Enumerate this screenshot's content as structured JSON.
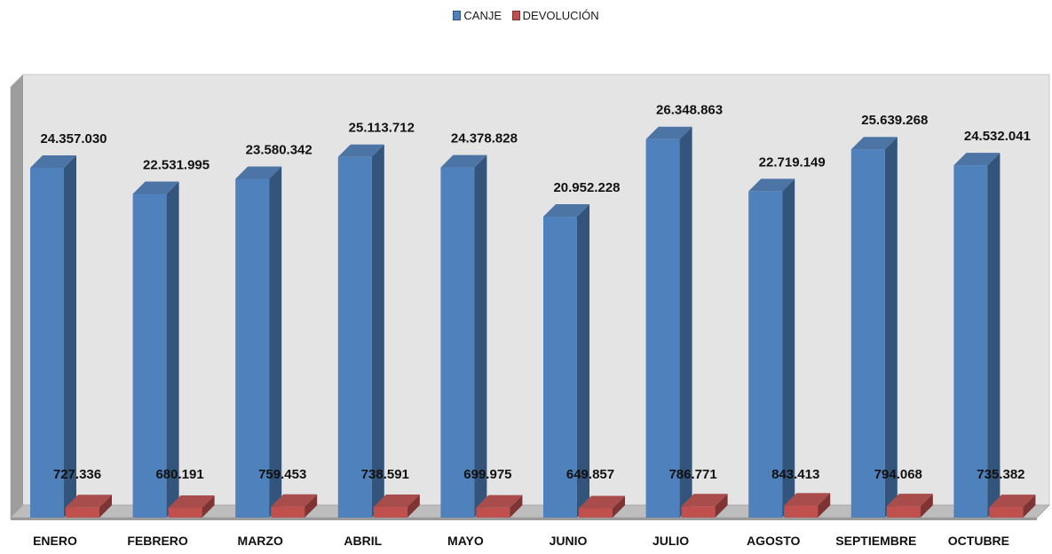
{
  "chart_data": {
    "type": "bar",
    "categories": [
      "ENERO",
      "FEBRERO",
      "MARZO",
      "ABRIL",
      "MAYO",
      "JUNIO",
      "JULIO",
      "AGOSTO",
      "SEPTIEMBRE",
      "OCTUBRE"
    ],
    "series": [
      {
        "name": "CANJE",
        "values": [
          24357030,
          22531995,
          23580342,
          25113712,
          24378828,
          20952228,
          26348863,
          22719149,
          25639268,
          24532041
        ],
        "labels": [
          "24.357.030",
          "22.531.995",
          "23.580.342",
          "25.113.712",
          "24.378.828",
          "20.952.228",
          "26.348.863",
          "22.719.149",
          "25.639.268",
          "24.532.041"
        ],
        "color": "#4f81bd"
      },
      {
        "name": "DEVOLUCIÓN",
        "values": [
          727336,
          680191,
          759453,
          738591,
          699975,
          649857,
          786771,
          843413,
          794068,
          735382
        ],
        "labels": [
          "727.336",
          "680.191",
          "759.453",
          "738.591",
          "699.975",
          "649.857",
          "786.771",
          "843.413",
          "794.068",
          "735.382"
        ],
        "color": "#c0504d"
      }
    ],
    "title": "",
    "xlabel": "",
    "ylabel": "",
    "legend": "top-center",
    "grid": false,
    "style": "3d-clustered-column",
    "colors": {
      "wall": "#e4e4e4",
      "floor": "#bdbdbd",
      "wall_side": "#9d9d9d"
    }
  }
}
